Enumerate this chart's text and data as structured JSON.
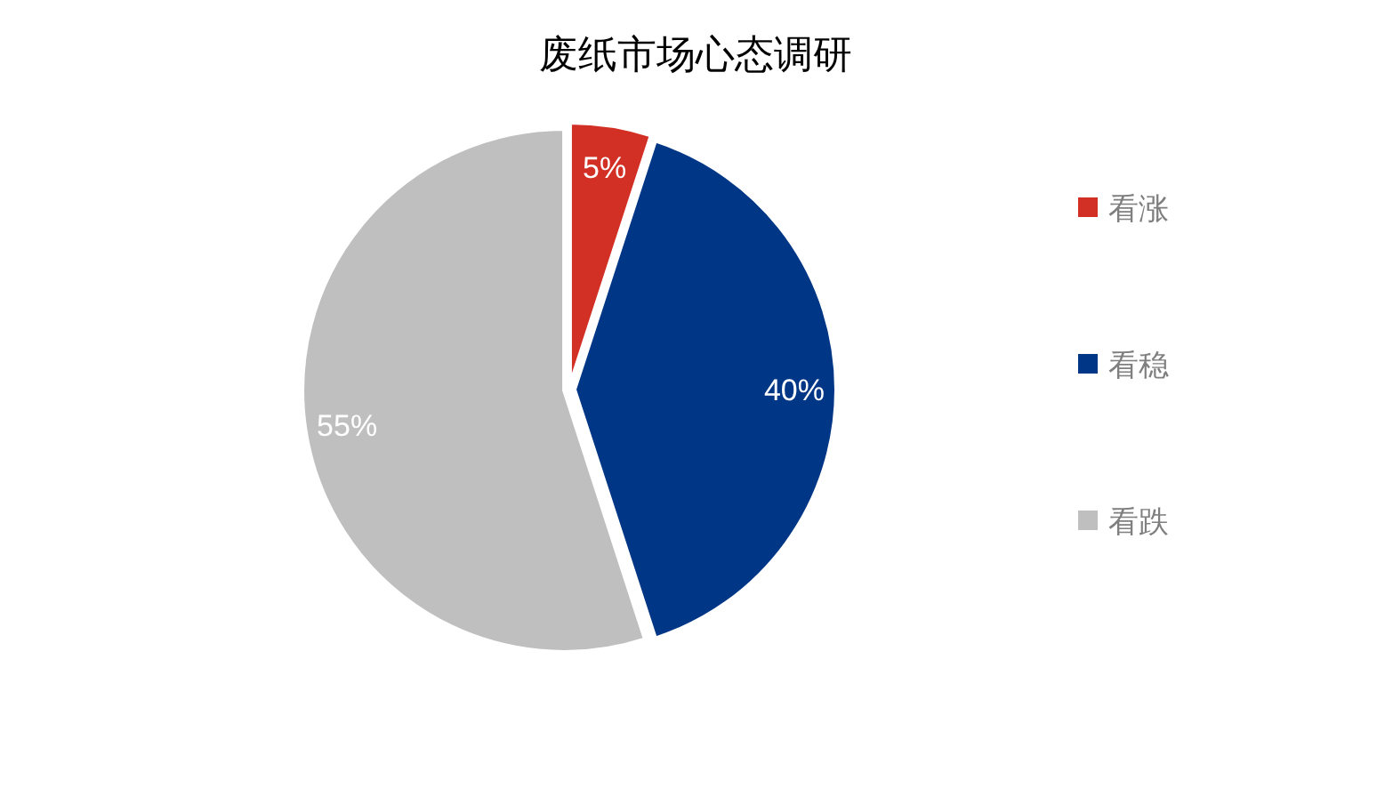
{
  "chart_data": {
    "type": "pie",
    "title": "废纸市场心态调研",
    "categories": [
      "看涨",
      "看稳",
      "看跌"
    ],
    "values": [
      5,
      40,
      55
    ],
    "colors": [
      "#d22f25",
      "#003686",
      "#bfbfbf"
    ],
    "value_labels": [
      "5%",
      "40%",
      "55%"
    ],
    "legend": "right"
  }
}
